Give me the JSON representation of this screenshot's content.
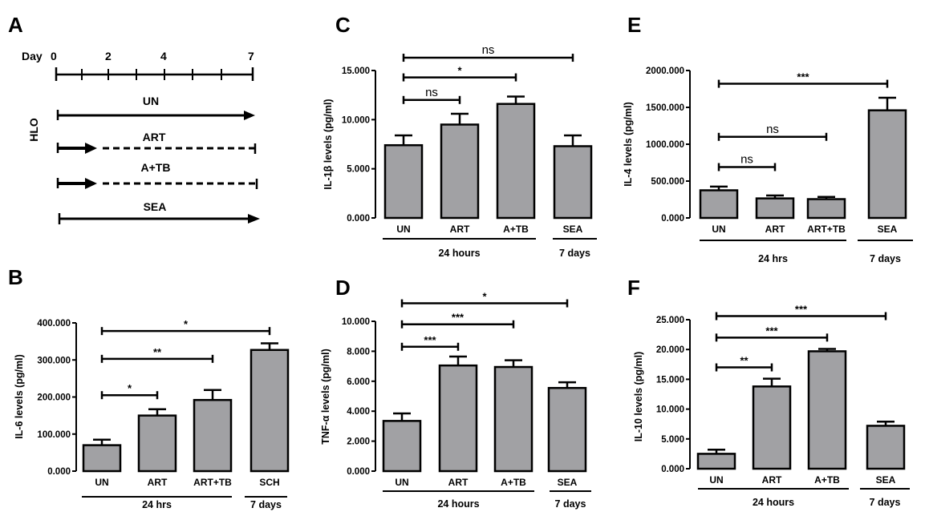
{
  "colors": {
    "bar": "#a1a1a4",
    "stroke": "#000000"
  },
  "timeline": {
    "label": "A",
    "day_word": "Day",
    "days": [
      "0",
      "2",
      "4",
      "7"
    ],
    "group_label": "HLO",
    "rows": [
      "UN",
      "ART",
      "A+TB",
      "SEA"
    ]
  },
  "chart_data": [
    {
      "panel": "B",
      "type": "bar",
      "ylabel": "IL-6 levels (pg/ml)",
      "ylim": [
        0,
        400000
      ],
      "yticks": [
        0,
        100000,
        200000,
        300000,
        400000
      ],
      "ytick_labels": [
        "0.000",
        "100.000",
        "200.000",
        "300.000",
        "400.000"
      ],
      "categories": [
        "UN",
        "ART",
        "ART+TB",
        "SCH"
      ],
      "values": [
        70000,
        150000,
        192000,
        327000
      ],
      "errors": [
        15000,
        17000,
        27000,
        18000
      ],
      "groups": [
        {
          "label": "24 hrs",
          "from": 0,
          "to": 2
        },
        {
          "label": "7 days",
          "from": 3,
          "to": 3
        }
      ],
      "significance": [
        {
          "from": 0,
          "to": 1,
          "label": "*",
          "y": 205000
        },
        {
          "from": 0,
          "to": 2,
          "label": "**",
          "y": 303000
        },
        {
          "from": 0,
          "to": 3,
          "label": "*",
          "y": 378000
        }
      ]
    },
    {
      "panel": "C",
      "type": "bar",
      "ylabel": "IL-1β levels (pg/ml)",
      "ylim": [
        0,
        15000
      ],
      "yticks": [
        0,
        5000,
        10000,
        15000
      ],
      "ytick_labels": [
        "0.000",
        "5.000",
        "10.000",
        "15.000"
      ],
      "categories": [
        "UN",
        "ART",
        "A+TB",
        "SEA"
      ],
      "values": [
        7400,
        9500,
        11600,
        7300
      ],
      "errors": [
        1000,
        1100,
        750,
        1100
      ],
      "groups": [
        {
          "label": "24 hours",
          "from": 0,
          "to": 2
        },
        {
          "label": "7 days",
          "from": 3,
          "to": 3
        }
      ],
      "significance": [
        {
          "from": 0,
          "to": 1,
          "label": "ns",
          "y": 12000
        },
        {
          "from": 0,
          "to": 2,
          "label": "*",
          "y": 14300
        },
        {
          "from": 0,
          "to": 3,
          "label": "ns",
          "y": 16300
        }
      ]
    },
    {
      "panel": "D",
      "type": "bar",
      "ylabel": "TNF-α levels (pg/ml)",
      "ylim": [
        0,
        10000
      ],
      "yticks": [
        0,
        2000,
        4000,
        6000,
        8000,
        10000
      ],
      "ytick_labels": [
        "0.000",
        "2.000",
        "4.000",
        "6.000",
        "8.000",
        "10.000"
      ],
      "categories": [
        "UN",
        "ART",
        "A+TB",
        "SEA"
      ],
      "values": [
        3350,
        7050,
        6950,
        5550
      ],
      "errors": [
        500,
        600,
        450,
        380
      ],
      "groups": [
        {
          "label": "24 hours",
          "from": 0,
          "to": 2
        },
        {
          "label": "7 days",
          "from": 3,
          "to": 3
        }
      ],
      "significance": [
        {
          "from": 0,
          "to": 1,
          "label": "***",
          "y": 8300
        },
        {
          "from": 0,
          "to": 2,
          "label": "***",
          "y": 9800
        },
        {
          "from": 0,
          "to": 3,
          "label": "*",
          "y": 11200
        }
      ]
    },
    {
      "panel": "E",
      "type": "bar",
      "ylabel": "IL-4 levels (pg/ml)",
      "ylim": [
        0,
        2000000
      ],
      "yticks": [
        0,
        500000,
        1000000,
        1500000,
        2000000
      ],
      "ytick_labels": [
        "0.000",
        "500.000",
        "1000.000",
        "1500.000",
        "2000.000"
      ],
      "categories": [
        "UN",
        "ART",
        "ART+TB",
        "SEA"
      ],
      "values": [
        375000,
        265000,
        255000,
        1460000
      ],
      "errors": [
        50000,
        40000,
        30000,
        170000
      ],
      "groups": [
        {
          "label": "24 hrs",
          "from": 0,
          "to": 2
        },
        {
          "label": "7 days",
          "from": 3,
          "to": 3
        }
      ],
      "significance": [
        {
          "from": 0,
          "to": 1,
          "label": "ns",
          "y": 690000
        },
        {
          "from": 0,
          "to": 2,
          "label": "ns",
          "y": 1100000
        },
        {
          "from": 0,
          "to": 3,
          "label": "***",
          "y": 1820000
        }
      ]
    },
    {
      "panel": "F",
      "type": "bar",
      "ylabel": "IL-10 levels (pg/ml)",
      "ylim": [
        0,
        25000
      ],
      "yticks": [
        0,
        5000,
        10000,
        15000,
        20000,
        25000
      ],
      "ytick_labels": [
        "0.000",
        "5.000",
        "10.000",
        "15.000",
        "20.000",
        "25.000"
      ],
      "categories": [
        "UN",
        "ART",
        "A+TB",
        "SEA"
      ],
      "values": [
        2500,
        13800,
        19700,
        7200
      ],
      "errors": [
        700,
        1300,
        400,
        700
      ],
      "groups": [
        {
          "label": "24 hours",
          "from": 0,
          "to": 2
        },
        {
          "label": "7 days",
          "from": 3,
          "to": 3
        }
      ],
      "significance": [
        {
          "from": 0,
          "to": 1,
          "label": "**",
          "y": 17000
        },
        {
          "from": 0,
          "to": 2,
          "label": "***",
          "y": 22000
        },
        {
          "from": 0,
          "to": 3,
          "label": "***",
          "y": 25600
        }
      ]
    }
  ]
}
